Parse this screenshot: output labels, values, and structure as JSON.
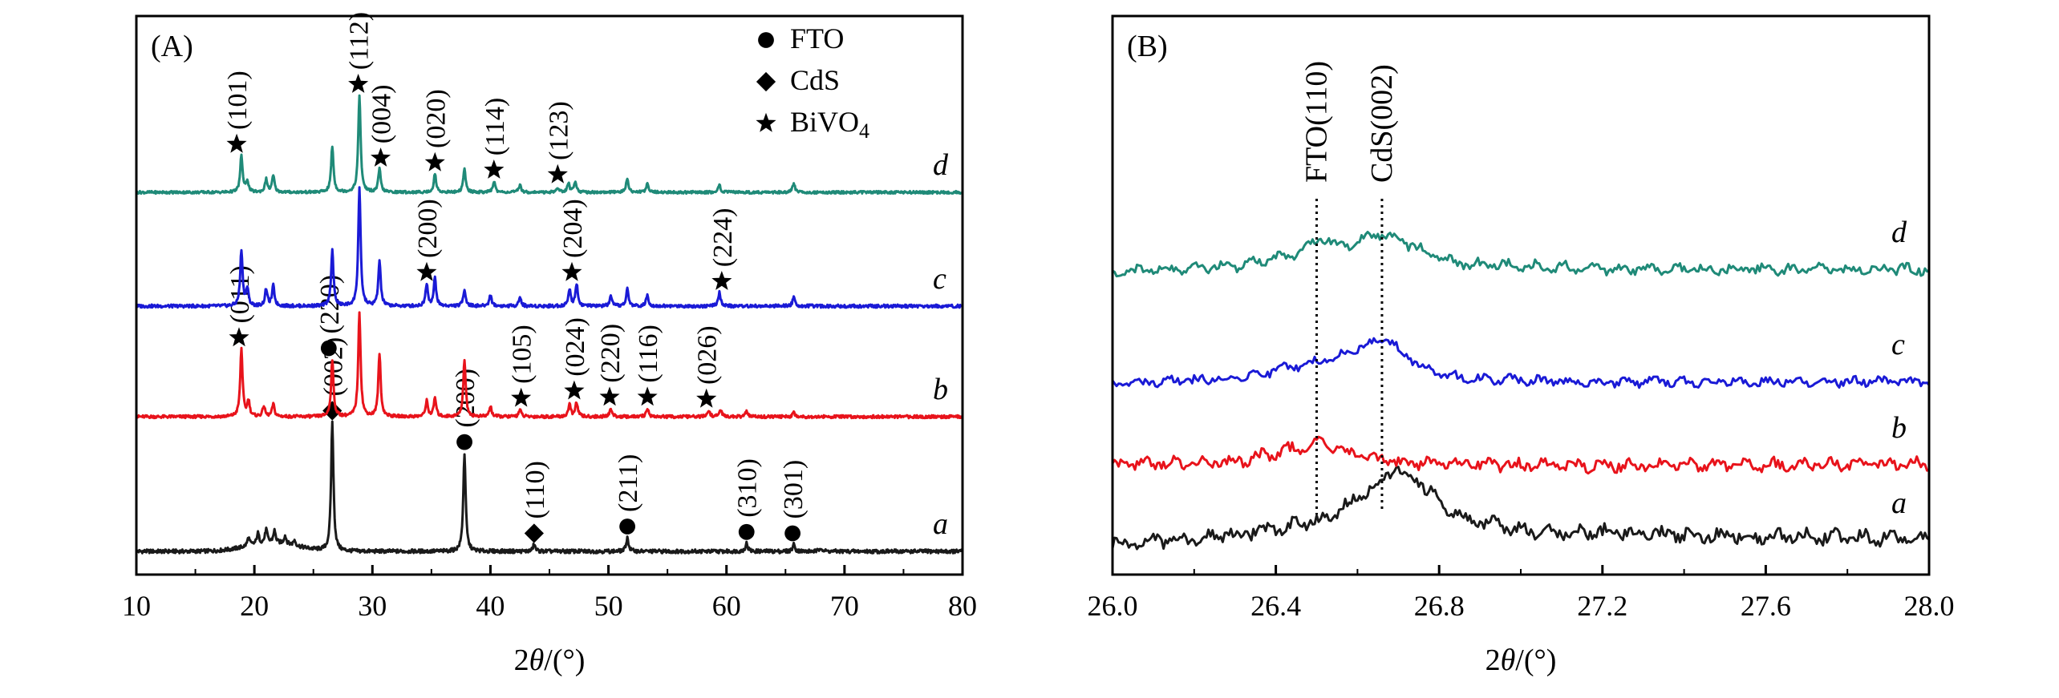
{
  "chart_data": [
    {
      "panel_label": "(A)",
      "type": "line",
      "xlabel_parts": [
        "2",
        "θ",
        "/(°)"
      ],
      "xlim": [
        10,
        80
      ],
      "xticks": [
        "10",
        "20",
        "30",
        "40",
        "50",
        "60",
        "70",
        "80"
      ],
      "legend_placement": "top-right",
      "legend": [
        {
          "marker": "circle",
          "label": "FTO",
          "sub": ""
        },
        {
          "marker": "diamond",
          "label": "CdS",
          "sub": ""
        },
        {
          "marker": "star",
          "label": "BiVO",
          "sub": "4"
        }
      ],
      "series": [
        {
          "name": "a",
          "color": "#1a1a1a",
          "peaks": [
            [
              19.5,
              0.06
            ],
            [
              20.3,
              0.08
            ],
            [
              21,
              0.1
            ],
            [
              21.7,
              0.09
            ],
            [
              22.6,
              0.06
            ],
            [
              23.4,
              0.04
            ],
            [
              26.6,
              0.95
            ],
            [
              37.8,
              0.72
            ],
            [
              43.7,
              0.05
            ],
            [
              51.6,
              0.1
            ],
            [
              61.7,
              0.06
            ],
            [
              65.7,
              0.05
            ],
            [
              68,
              0.03
            ]
          ],
          "annotations": [
            {
              "label": "(002)",
              "x": 26.6,
              "marker": "diamond"
            },
            {
              "label": "(200)",
              "x": 37.8,
              "marker": "circle"
            },
            {
              "label": "(110)",
              "x": 43.7,
              "marker": "diamond"
            },
            {
              "label": "(211)",
              "x": 51.6,
              "marker": "circle"
            },
            {
              "label": "(310)",
              "x": 61.7,
              "marker": "circle"
            },
            {
              "label": "(301)",
              "x": 65.6,
              "marker": "circle"
            }
          ]
        },
        {
          "name": "b",
          "color": "#e8131b",
          "peaks": [
            [
              18.9,
              0.65
            ],
            [
              19.5,
              0.15
            ],
            [
              20.8,
              0.1
            ],
            [
              21.6,
              0.12
            ],
            [
              26.6,
              0.55
            ],
            [
              28.9,
              1.0
            ],
            [
              30.6,
              0.6
            ],
            [
              34.6,
              0.15
            ],
            [
              35.3,
              0.18
            ],
            [
              37.8,
              0.55
            ],
            [
              40,
              0.1
            ],
            [
              42.5,
              0.07
            ],
            [
              46.7,
              0.12
            ],
            [
              47.3,
              0.14
            ],
            [
              50.2,
              0.08
            ],
            [
              53.3,
              0.08
            ],
            [
              58.5,
              0.06
            ],
            [
              59.5,
              0.07
            ],
            [
              61.7,
              0.05
            ],
            [
              65.7,
              0.04
            ]
          ],
          "annotations": [
            {
              "label": "(011)",
              "x": 18.7,
              "marker": "star"
            },
            {
              "label": "(220)",
              "x": 26.3,
              "marker": "circle"
            },
            {
              "label": "(105)",
              "x": 42.6,
              "marker": "star"
            },
            {
              "label": "(024)",
              "x": 47.1,
              "marker": "star"
            },
            {
              "label": "(220)",
              "x": 50.1,
              "marker": "star"
            },
            {
              "label": "(116)",
              "x": 53.3,
              "marker": "star"
            },
            {
              "label": "(026)",
              "x": 58.3,
              "marker": "star"
            }
          ]
        },
        {
          "name": "c",
          "color": "#1a1ad6",
          "peaks": [
            [
              18.9,
              0.5
            ],
            [
              19.4,
              0.15
            ],
            [
              21,
              0.15
            ],
            [
              21.6,
              0.18
            ],
            [
              26.6,
              0.5
            ],
            [
              28.9,
              1.05
            ],
            [
              30.6,
              0.4
            ],
            [
              34.6,
              0.2
            ],
            [
              35.3,
              0.25
            ],
            [
              37.8,
              0.15
            ],
            [
              40,
              0.1
            ],
            [
              42.5,
              0.08
            ],
            [
              46.7,
              0.15
            ],
            [
              47.3,
              0.2
            ],
            [
              50.2,
              0.08
            ],
            [
              51.6,
              0.15
            ],
            [
              53.3,
              0.1
            ],
            [
              59.4,
              0.12
            ],
            [
              65.7,
              0.08
            ]
          ],
          "annotations": [
            {
              "label": "(200)",
              "x": 34.6,
              "marker": "star"
            },
            {
              "label": "(204)",
              "x": 46.9,
              "marker": "star"
            },
            {
              "label": "(224)",
              "x": 59.6,
              "marker": "star"
            }
          ]
        },
        {
          "name": "d",
          "color": "#1f8a78",
          "peaks": [
            [
              18.9,
              0.4
            ],
            [
              19.4,
              0.12
            ],
            [
              21,
              0.14
            ],
            [
              21.6,
              0.18
            ],
            [
              26.6,
              0.5
            ],
            [
              28.9,
              1.05
            ],
            [
              30.6,
              0.25
            ],
            [
              35.3,
              0.2
            ],
            [
              37.8,
              0.25
            ],
            [
              40.3,
              0.12
            ],
            [
              42.5,
              0.08
            ],
            [
              45.7,
              0.05
            ],
            [
              46.6,
              0.1
            ],
            [
              47.2,
              0.12
            ],
            [
              51.6,
              0.15
            ],
            [
              53.3,
              0.1
            ],
            [
              59.4,
              0.08
            ],
            [
              65.7,
              0.1
            ]
          ],
          "annotations": [
            {
              "label": "(101)",
              "x": 18.5,
              "marker": "star"
            },
            {
              "label": "(112)",
              "x": 28.8,
              "marker": "star"
            },
            {
              "label": "(004)",
              "x": 30.7,
              "marker": "star"
            },
            {
              "label": "(020)",
              "x": 35.3,
              "marker": "star"
            },
            {
              "label": "(114)",
              "x": 40.3,
              "marker": "star"
            },
            {
              "label": "(123)",
              "x": 45.7,
              "marker": "star"
            }
          ]
        }
      ]
    },
    {
      "panel_label": "(B)",
      "type": "line",
      "xlabel_parts": [
        "2",
        "θ",
        "/(°)"
      ],
      "xlim": [
        26.0,
        28.0
      ],
      "xticks": [
        "26.0",
        "26.4",
        "26.8",
        "27.2",
        "27.6",
        "28.0"
      ],
      "reference_lines": [
        {
          "label": "FTO(110)",
          "x": 26.5
        },
        {
          "label": "CdS(002)",
          "x": 26.66
        }
      ],
      "series": [
        {
          "name": "a",
          "color": "#1a1a1a",
          "baseline": [
            [
              26.0,
              0.0
            ],
            [
              26.3,
              0.1
            ],
            [
              26.5,
              0.25
            ],
            [
              26.6,
              0.5
            ],
            [
              26.7,
              0.85
            ],
            [
              26.75,
              0.7
            ],
            [
              26.85,
              0.3
            ],
            [
              27.0,
              0.15
            ],
            [
              27.4,
              0.1
            ],
            [
              28.0,
              0.05
            ]
          ]
        },
        {
          "name": "b",
          "color": "#e8131b",
          "baseline": [
            [
              26.0,
              0.05
            ],
            [
              26.3,
              0.12
            ],
            [
              26.45,
              0.35
            ],
            [
              26.5,
              0.45
            ],
            [
              26.6,
              0.25
            ],
            [
              26.7,
              0.1
            ],
            [
              27.0,
              0.05
            ],
            [
              27.5,
              0.05
            ],
            [
              28.0,
              0.08
            ]
          ]
        },
        {
          "name": "c",
          "color": "#1a1ad6",
          "baseline": [
            [
              26.0,
              0.0
            ],
            [
              26.3,
              0.1
            ],
            [
              26.5,
              0.35
            ],
            [
              26.6,
              0.55
            ],
            [
              26.66,
              0.75
            ],
            [
              26.75,
              0.3
            ],
            [
              26.85,
              0.1
            ],
            [
              27.2,
              0.04
            ],
            [
              27.6,
              0.05
            ],
            [
              28.0,
              0.05
            ]
          ]
        },
        {
          "name": "d",
          "color": "#1f8a78",
          "baseline": [
            [
              26.0,
              0.0
            ],
            [
              26.3,
              0.1
            ],
            [
              26.47,
              0.35
            ],
            [
              26.5,
              0.55
            ],
            [
              26.57,
              0.45
            ],
            [
              26.66,
              0.65
            ],
            [
              26.75,
              0.4
            ],
            [
              26.85,
              0.15
            ],
            [
              27.2,
              0.06
            ],
            [
              27.6,
              0.05
            ],
            [
              28.0,
              0.05
            ]
          ]
        }
      ]
    }
  ]
}
